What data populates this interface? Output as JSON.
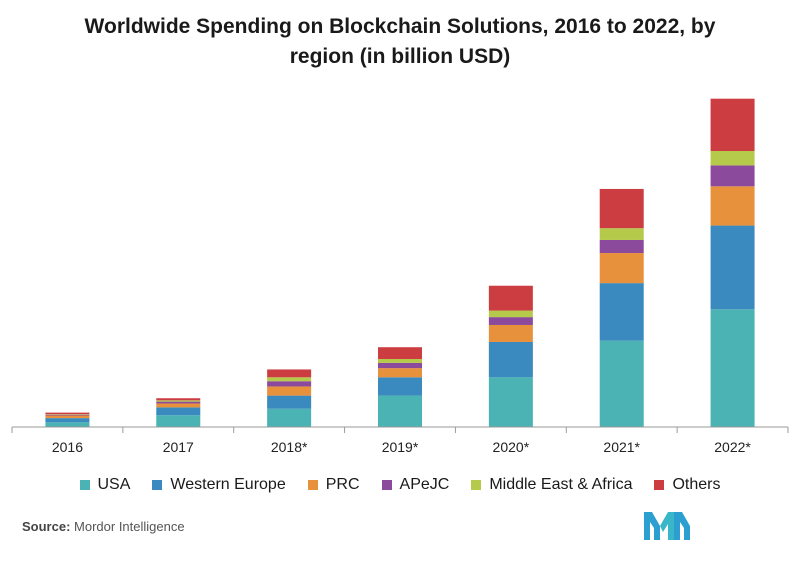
{
  "title_line1": "Worldwide Spending on Blockchain Solutions, 2016 to 2022, by",
  "title_line2": "region (in billion USD)",
  "source_label": "Source:",
  "source_name": "Mordor Intelligence",
  "logo_icon": "mordor-intelligence-logo-icon",
  "chart_data": {
    "type": "bar",
    "stacked": true,
    "title": "Worldwide Spending on Blockchain Solutions, 2016 to 2022, by region (in billion USD)",
    "xlabel": "",
    "ylabel": "",
    "ylim": [
      0,
      12.5
    ],
    "grid": false,
    "legend_position": "bottom",
    "categories": [
      "2016",
      "2017",
      "2018*",
      "2019*",
      "2020*",
      "2021*",
      "2022*"
    ],
    "series": [
      {
        "name": "USA",
        "color": "#4bb3b3",
        "values": [
          0.18,
          0.45,
          0.7,
          1.2,
          1.9,
          3.3,
          4.5
        ]
      },
      {
        "name": "Western Europe",
        "color": "#3a8abf",
        "values": [
          0.16,
          0.3,
          0.5,
          0.7,
          1.35,
          2.2,
          3.2
        ]
      },
      {
        "name": "PRC",
        "color": "#e8913d",
        "values": [
          0.1,
          0.15,
          0.35,
          0.35,
          0.65,
          1.15,
          1.5
        ]
      },
      {
        "name": "APeJC",
        "color": "#8b4a9c",
        "values": [
          0.03,
          0.07,
          0.2,
          0.2,
          0.3,
          0.5,
          0.8
        ]
      },
      {
        "name": "Middle East & Africa",
        "color": "#b5c94a",
        "values": [
          0.02,
          0.05,
          0.15,
          0.15,
          0.25,
          0.45,
          0.55
        ]
      },
      {
        "name": "Others",
        "color": "#cc3d42",
        "values": [
          0.06,
          0.08,
          0.3,
          0.45,
          0.95,
          1.5,
          2.0
        ]
      }
    ]
  }
}
